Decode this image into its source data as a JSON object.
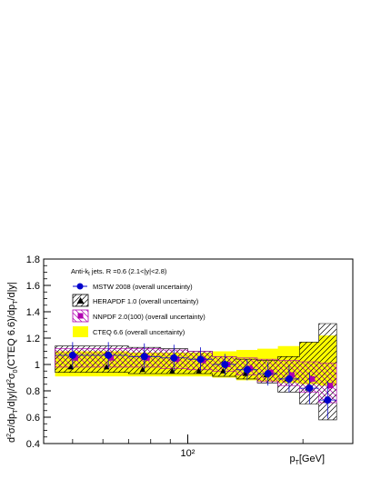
{
  "chart_data": {
    "type": "scatter",
    "title": "",
    "xlabel": "p_T[GeV]",
    "ylabel": "d²σ/dp_T/d|y|/d²σ_0(CTEQ 6.6)/dp_T/d|y|",
    "xscale": "log",
    "xlim": [
      42,
      270
    ],
    "ylim": [
      0.4,
      1.8
    ],
    "xticks": [
      {
        "value": 100,
        "label": "10²"
      }
    ],
    "yticks": [
      0.4,
      0.6,
      0.8,
      1.0,
      1.2,
      1.4,
      1.6,
      1.8
    ],
    "ytick_labels": [
      "0.4",
      "0.6",
      "0.8",
      "1",
      "1.2",
      "1.4",
      "1.6",
      "1.8"
    ],
    "annotation": "Anti-k_t jets. R =0.6 (2.1<|y|<2.8)",
    "legend_position": "top-left",
    "bins": [
      {
        "lo": 45,
        "hi": 55,
        "x": 50
      },
      {
        "lo": 55,
        "hi": 70,
        "x": 62
      },
      {
        "lo": 70,
        "hi": 85,
        "x": 77
      },
      {
        "lo": 85,
        "hi": 100,
        "x": 92
      },
      {
        "lo": 100,
        "hi": 116,
        "x": 108
      },
      {
        "lo": 116,
        "hi": 134,
        "x": 125
      },
      {
        "lo": 134,
        "hi": 152,
        "x": 143
      },
      {
        "lo": 152,
        "hi": 172,
        "x": 162
      },
      {
        "lo": 172,
        "hi": 196,
        "x": 184
      },
      {
        "lo": 196,
        "hi": 220,
        "x": 208
      },
      {
        "lo": 220,
        "hi": 245,
        "x": 232
      }
    ],
    "series": [
      {
        "name": "CTEQ 6.6 (overall uncertainty)",
        "kind": "band",
        "color": "#ffff00",
        "lower": [
          0.91,
          0.91,
          0.91,
          0.91,
          0.91,
          0.9,
          0.88,
          0.87,
          0.86,
          0.85,
          0.84
        ],
        "upper": [
          1.1,
          1.1,
          1.09,
          1.09,
          1.09,
          1.1,
          1.11,
          1.12,
          1.14,
          1.17,
          1.22
        ]
      },
      {
        "name": "HERAPDF 1.0 (overall uncertainty)",
        "kind": "hatched-band-with-markers",
        "color": "#000000",
        "marker": "triangle",
        "lower": [
          0.94,
          0.94,
          0.93,
          0.93,
          0.93,
          0.91,
          0.89,
          0.86,
          0.79,
          0.7,
          0.58
        ],
        "upper": [
          1.14,
          1.14,
          1.13,
          1.12,
          1.1,
          1.06,
          1.04,
          1.03,
          1.06,
          1.17,
          1.31
        ],
        "values": [
          0.98,
          0.98,
          0.96,
          0.95,
          0.95,
          0.95,
          0.93,
          0.92,
          0.89,
          0.82,
          0.73
        ]
      },
      {
        "name": "NNPDF 2.0(100) (overall uncertainty)",
        "kind": "hatched-band-with-markers",
        "color": "#b000b0",
        "marker": "square",
        "lower": [
          0.98,
          0.98,
          0.98,
          0.97,
          0.96,
          0.95,
          0.92,
          0.87,
          0.84,
          0.79,
          0.71
        ],
        "upper": [
          1.12,
          1.12,
          1.12,
          1.11,
          1.1,
          1.06,
          1.05,
          1.04,
          1.03,
          1.02,
          1.01
        ],
        "values": [
          1.05,
          1.05,
          1.05,
          1.04,
          1.03,
          1.0,
          0.97,
          0.94,
          0.92,
          0.89,
          0.84
        ]
      },
      {
        "name": "MSTW 2008 (overall uncertainty)",
        "kind": "points-with-errorbars",
        "color": "#0000cc",
        "marker": "circle",
        "values": [
          1.07,
          1.07,
          1.06,
          1.05,
          1.04,
          1.0,
          0.96,
          0.93,
          0.89,
          0.82,
          0.73
        ],
        "err": [
          0.1,
          0.1,
          0.1,
          0.1,
          0.09,
          0.08,
          0.08,
          0.09,
          0.1,
          0.12,
          0.14
        ]
      }
    ]
  }
}
